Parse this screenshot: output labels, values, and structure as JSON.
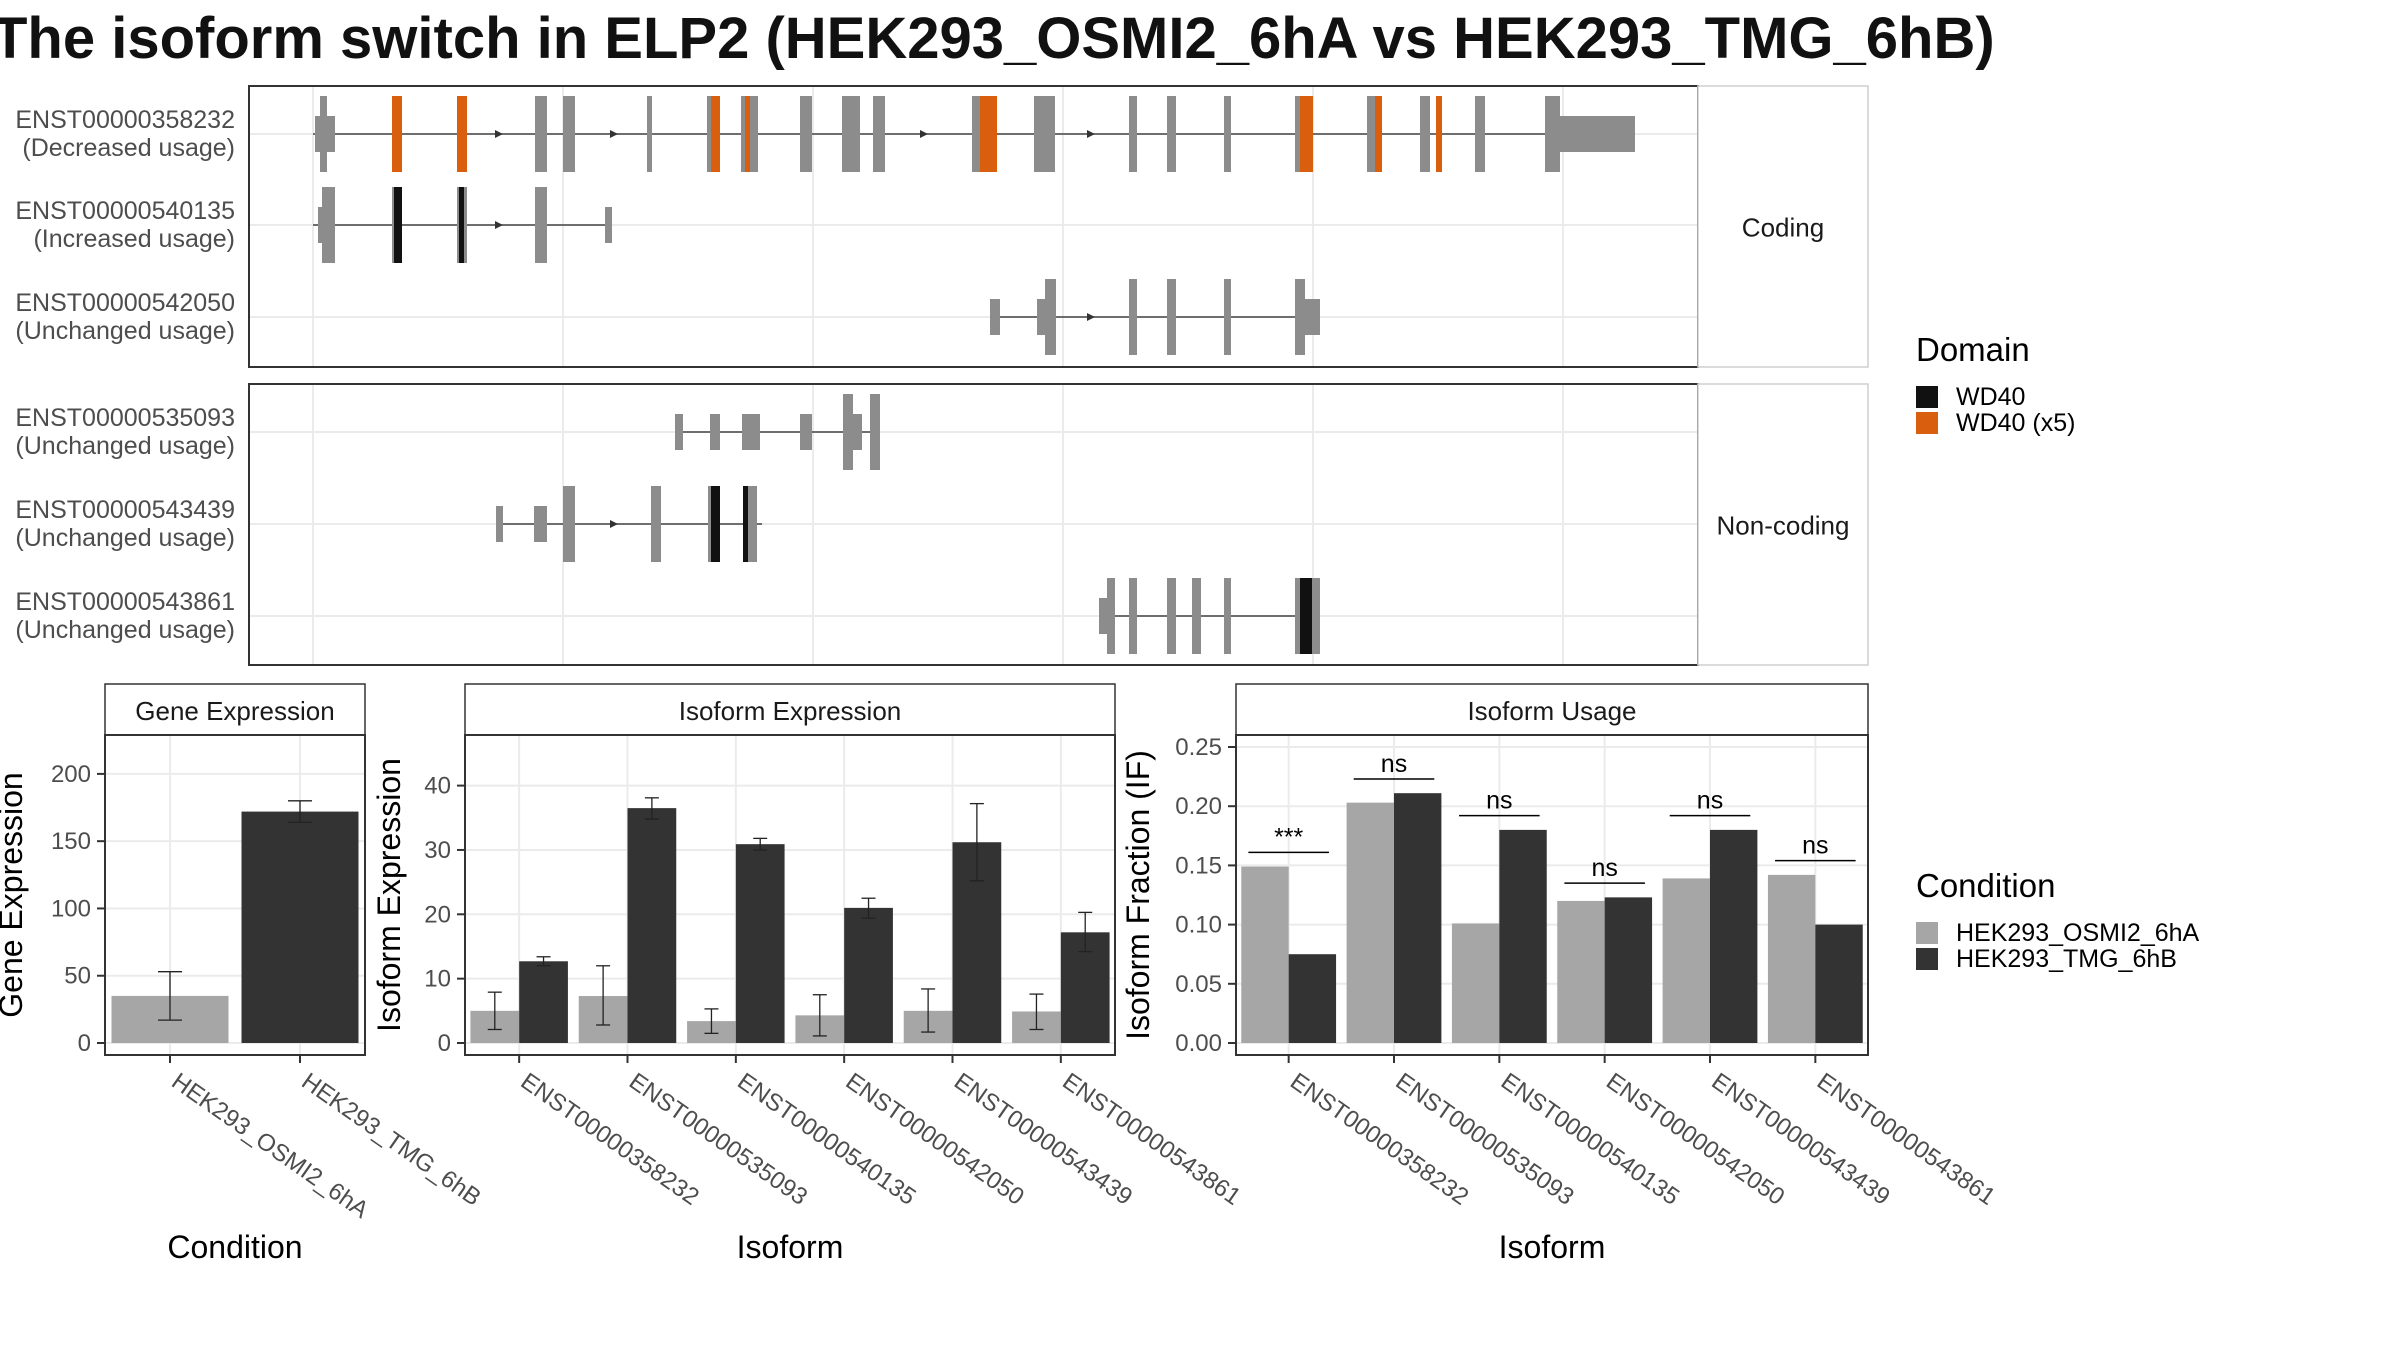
{
  "title": "The isoform switch in ELP2 (HEK293_OSMI2_6hA vs HEK293_TMG_6hB)",
  "structure_panels": [
    {
      "facet": "Coding",
      "isoforms": [
        {
          "id": "ENST00000358232",
          "usage": "(Decreased usage)"
        },
        {
          "id": "ENST00000540135",
          "usage": "(Increased usage)"
        },
        {
          "id": "ENST00000542050",
          "usage": "(Unchanged usage)"
        }
      ]
    },
    {
      "facet": "Non-coding",
      "isoforms": [
        {
          "id": "ENST00000535093",
          "usage": "(Unchanged usage)"
        },
        {
          "id": "ENST00000543439",
          "usage": "(Unchanged usage)"
        },
        {
          "id": "ENST00000543861",
          "usage": "(Unchanged usage)"
        }
      ]
    }
  ],
  "domain_legend": {
    "title": "Domain",
    "items": [
      {
        "label": "WD40",
        "color": "#111111"
      },
      {
        "label": "WD40 (x5)",
        "color": "#d95f0e"
      }
    ]
  },
  "condition_legend": {
    "title": "Condition",
    "items": [
      {
        "label": "HEK293_OSMI2_6hA",
        "color": "#a6a6a6"
      },
      {
        "label": "HEK293_TMG_6hB",
        "color": "#333333"
      }
    ]
  },
  "chart_data": [
    {
      "type": "bar",
      "title": "Gene Expression",
      "xlabel": "Condition",
      "ylabel": "Gene Expression",
      "ylim": [
        0,
        220
      ],
      "yticks": [
        0,
        50,
        100,
        150,
        200
      ],
      "categories": [
        "HEK293_OSMI2_6hA",
        "HEK293_TMG_6hB"
      ],
      "values": [
        35,
        172
      ],
      "error_low": [
        17,
        164
      ],
      "error_high": [
        53,
        180
      ]
    },
    {
      "type": "bar",
      "title": "Isoform Expression",
      "xlabel": "Isoform",
      "ylabel": "Isoform Expression",
      "ylim": [
        0,
        46
      ],
      "yticks": [
        0,
        10,
        20,
        30,
        40
      ],
      "categories": [
        "ENST00000358232",
        "ENST00000535093",
        "ENST00000540135",
        "ENST00000542050",
        "ENST00000543439",
        "ENST00000543861"
      ],
      "series": [
        {
          "name": "HEK293_OSMI2_6hA",
          "values": [
            5.0,
            7.3,
            3.4,
            4.3,
            5.0,
            4.9
          ],
          "error_low": [
            2.1,
            2.8,
            1.5,
            1.1,
            1.7,
            2.1
          ],
          "error_high": [
            7.9,
            12.0,
            5.3,
            7.5,
            8.4,
            7.6
          ]
        },
        {
          "name": "HEK293_TMG_6hB",
          "values": [
            12.7,
            36.5,
            30.9,
            21.0,
            31.2,
            17.2
          ],
          "error_low": [
            12.0,
            34.8,
            30.0,
            19.4,
            25.2,
            14.2
          ],
          "error_high": [
            13.4,
            38.1,
            31.8,
            22.5,
            37.2,
            20.3
          ]
        }
      ]
    },
    {
      "type": "bar",
      "title": "Isoform Usage",
      "xlabel": "Isoform",
      "ylabel": "Isoform Fraction (IF)",
      "ylim": [
        0,
        0.25
      ],
      "yticks": [
        "0.00",
        "0.05",
        "0.10",
        "0.15",
        "0.20",
        "0.25"
      ],
      "categories": [
        "ENST00000358232",
        "ENST00000535093",
        "ENST00000540135",
        "ENST00000542050",
        "ENST00000543439",
        "ENST00000543861"
      ],
      "series": [
        {
          "name": "HEK293_OSMI2_6hA",
          "values": [
            0.149,
            0.203,
            0.101,
            0.12,
            0.139,
            0.142
          ]
        },
        {
          "name": "HEK293_TMG_6hB",
          "values": [
            0.075,
            0.211,
            0.18,
            0.123,
            0.18,
            0.1
          ]
        }
      ],
      "significance": [
        "***",
        "ns",
        "ns",
        "ns",
        "ns",
        "ns"
      ],
      "significance_level": [
        0.161,
        0.223,
        0.192,
        0.135,
        0.192,
        0.154
      ]
    }
  ]
}
